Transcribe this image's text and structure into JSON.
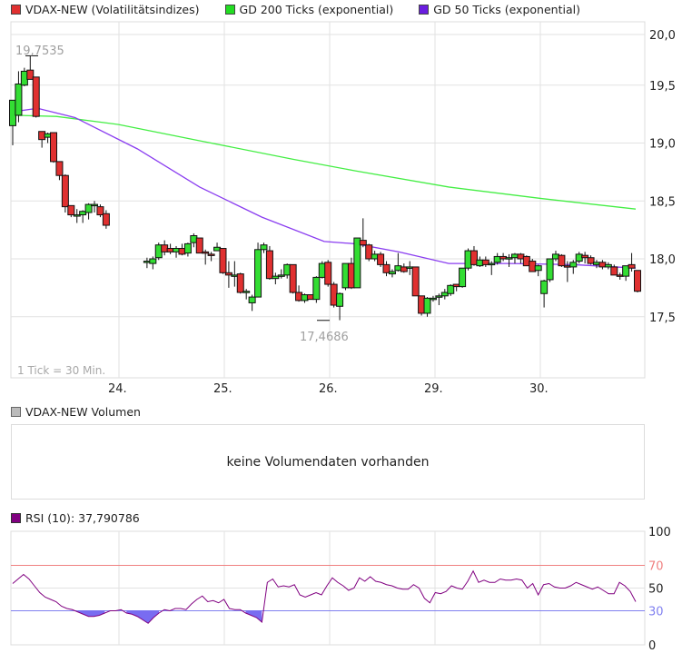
{
  "legend": {
    "items": [
      {
        "label": "VDAX-NEW (Volatilitätsindizes)",
        "color": "#e03030"
      },
      {
        "label": "GD 200 Ticks (exponential)",
        "color": "#22dd22"
      },
      {
        "label": "GD 50 Ticks (exponential)",
        "color": "#6a1de0"
      }
    ]
  },
  "main_chart": {
    "high_label": "19,7535",
    "low_label": "17,4686",
    "tick_note": "1 Tick = 30 Min.",
    "y_ticks": [
      "20,0",
      "19,5",
      "19,0",
      "18,5",
      "18,0",
      "17,5"
    ],
    "x_ticks": [
      "24.",
      "25.",
      "26.",
      "29.",
      "30."
    ]
  },
  "volume_panel": {
    "label": "VDAX-NEW Volumen",
    "swatch_color": "#bbbbbb",
    "message": "keine Volumendaten vorhanden"
  },
  "rsi_panel": {
    "label": "RSI (10): 37,790786",
    "swatch_color": "#800080",
    "y_ticks": [
      "100",
      "70",
      "50",
      "30",
      "0"
    ],
    "overbought": 70,
    "oversold": 30,
    "overbought_color": "#f08080",
    "oversold_color": "#8080f0"
  },
  "colors": {
    "up": "#33dd33",
    "down": "#e03030",
    "ema200": "#44ee44",
    "ema50": "#8a3df0",
    "grid": "#e0e0e0",
    "rsi_line": "#800080",
    "rsi_fill": "#6a5cf0"
  },
  "chart_data": [
    {
      "type": "candlestick",
      "title": "VDAX-NEW (Volatilitätsindizes)",
      "xlabel": "",
      "ylabel": "",
      "ylim": [
        17.0,
        20.1
      ],
      "x_categories": [
        "24.",
        "25.",
        "26.",
        "29.",
        "30."
      ],
      "interval": "30 Min.",
      "annotations": [
        {
          "label": "19,7535",
          "type": "high"
        },
        {
          "label": "17,4686",
          "type": "low"
        }
      ],
      "candles": [
        {
          "o": 19.15,
          "h": 19.35,
          "l": 18.98,
          "c": 19.37
        },
        {
          "o": 19.24,
          "h": 19.62,
          "l": 19.18,
          "c": 19.51
        },
        {
          "o": 19.5,
          "h": 19.65,
          "l": 19.49,
          "c": 19.62
        },
        {
          "o": 19.63,
          "h": 19.75,
          "l": 19.55,
          "c": 19.55
        },
        {
          "o": 19.57,
          "h": 19.57,
          "l": 19.22,
          "c": 19.23
        },
        {
          "o": 19.1,
          "h": 19.1,
          "l": 18.96,
          "c": 19.03
        },
        {
          "o": 19.05,
          "h": 19.09,
          "l": 19.0,
          "c": 19.08
        },
        {
          "o": 19.09,
          "h": 19.09,
          "l": 18.83,
          "c": 18.84
        },
        {
          "o": 18.84,
          "h": 18.84,
          "l": 18.68,
          "c": 18.72
        },
        {
          "o": 18.72,
          "h": 18.73,
          "l": 18.4,
          "c": 18.45
        },
        {
          "o": 18.46,
          "h": 18.46,
          "l": 18.36,
          "c": 18.38
        },
        {
          "o": 18.38,
          "h": 18.43,
          "l": 18.31,
          "c": 18.38
        },
        {
          "o": 18.38,
          "h": 18.42,
          "l": 18.31,
          "c": 18.41
        },
        {
          "o": 18.4,
          "h": 18.48,
          "l": 18.34,
          "c": 18.47
        },
        {
          "o": 18.47,
          "h": 18.5,
          "l": 18.4,
          "c": 18.47
        },
        {
          "o": 18.45,
          "h": 18.47,
          "l": 18.36,
          "c": 18.38
        },
        {
          "o": 18.39,
          "h": 18.42,
          "l": 18.26,
          "c": 18.29
        },
        {
          "o": 17.98,
          "h": 18.01,
          "l": 17.92,
          "c": 17.98
        },
        {
          "o": 17.96,
          "h": 18.02,
          "l": 17.91,
          "c": 18.0
        },
        {
          "o": 18.01,
          "h": 18.14,
          "l": 17.99,
          "c": 18.12
        },
        {
          "o": 18.12,
          "h": 18.16,
          "l": 18.03,
          "c": 18.06
        },
        {
          "o": 18.09,
          "h": 18.13,
          "l": 18.04,
          "c": 18.06
        },
        {
          "o": 18.06,
          "h": 18.11,
          "l": 18.01,
          "c": 18.09
        },
        {
          "o": 18.09,
          "h": 18.13,
          "l": 18.03,
          "c": 18.04
        },
        {
          "o": 18.05,
          "h": 18.14,
          "l": 18.02,
          "c": 18.13
        },
        {
          "o": 18.14,
          "h": 18.22,
          "l": 18.1,
          "c": 18.2
        },
        {
          "o": 18.18,
          "h": 18.18,
          "l": 18.05,
          "c": 18.05
        },
        {
          "o": 18.06,
          "h": 18.08,
          "l": 17.95,
          "c": 18.05
        },
        {
          "o": 18.04,
          "h": 18.06,
          "l": 17.98,
          "c": 18.03
        },
        {
          "o": 18.07,
          "h": 18.14,
          "l": 18.07,
          "c": 18.1
        },
        {
          "o": 18.09,
          "h": 18.09,
          "l": 17.87,
          "c": 17.88
        },
        {
          "o": 17.88,
          "h": 17.98,
          "l": 17.75,
          "c": 17.86
        },
        {
          "o": 17.85,
          "h": 17.98,
          "l": 17.76,
          "c": 17.86
        },
        {
          "o": 17.87,
          "h": 17.88,
          "l": 17.7,
          "c": 17.71
        },
        {
          "o": 17.71,
          "h": 17.74,
          "l": 17.65,
          "c": 17.72
        },
        {
          "o": 17.62,
          "h": 17.69,
          "l": 17.55,
          "c": 17.67
        },
        {
          "o": 17.67,
          "h": 18.14,
          "l": 17.67,
          "c": 18.08
        },
        {
          "o": 18.08,
          "h": 18.14,
          "l": 18.05,
          "c": 18.12
        },
        {
          "o": 18.07,
          "h": 18.11,
          "l": 17.82,
          "c": 17.83
        },
        {
          "o": 17.83,
          "h": 17.88,
          "l": 17.78,
          "c": 17.85
        },
        {
          "o": 17.86,
          "h": 17.91,
          "l": 17.83,
          "c": 17.86
        },
        {
          "o": 17.86,
          "h": 17.96,
          "l": 17.83,
          "c": 17.95
        },
        {
          "o": 17.95,
          "h": 17.95,
          "l": 17.7,
          "c": 17.71
        },
        {
          "o": 17.71,
          "h": 17.77,
          "l": 17.63,
          "c": 17.64
        },
        {
          "o": 17.64,
          "h": 17.7,
          "l": 17.62,
          "c": 17.69
        },
        {
          "o": 17.69,
          "h": 17.69,
          "l": 17.65,
          "c": 17.65
        },
        {
          "o": 17.65,
          "h": 17.85,
          "l": 17.62,
          "c": 17.84
        },
        {
          "o": 17.84,
          "h": 17.98,
          "l": 17.83,
          "c": 17.96
        },
        {
          "o": 17.97,
          "h": 17.99,
          "l": 17.76,
          "c": 17.78
        },
        {
          "o": 17.78,
          "h": 17.8,
          "l": 17.58,
          "c": 17.6
        },
        {
          "o": 17.59,
          "h": 17.71,
          "l": 17.47,
          "c": 17.7
        },
        {
          "o": 17.75,
          "h": 17.96,
          "l": 17.73,
          "c": 17.96
        },
        {
          "o": 17.96,
          "h": 18.01,
          "l": 17.74,
          "c": 17.75
        },
        {
          "o": 17.75,
          "h": 18.18,
          "l": 17.75,
          "c": 18.18
        },
        {
          "o": 18.16,
          "h": 18.35,
          "l": 18.1,
          "c": 18.12
        },
        {
          "o": 18.12,
          "h": 18.13,
          "l": 17.98,
          "c": 18.0
        },
        {
          "o": 18.0,
          "h": 18.07,
          "l": 17.98,
          "c": 18.04
        },
        {
          "o": 18.04,
          "h": 18.06,
          "l": 17.93,
          "c": 17.95
        },
        {
          "o": 17.95,
          "h": 17.98,
          "l": 17.85,
          "c": 17.88
        },
        {
          "o": 17.87,
          "h": 17.91,
          "l": 17.84,
          "c": 17.89
        },
        {
          "o": 17.9,
          "h": 18.05,
          "l": 17.89,
          "c": 17.94
        },
        {
          "o": 17.93,
          "h": 17.96,
          "l": 17.88,
          "c": 17.89
        },
        {
          "o": 17.93,
          "h": 17.98,
          "l": 17.86,
          "c": 17.93
        },
        {
          "o": 17.93,
          "h": 17.93,
          "l": 17.68,
          "c": 17.68
        },
        {
          "o": 17.68,
          "h": 17.68,
          "l": 17.51,
          "c": 17.53
        },
        {
          "o": 17.53,
          "h": 17.67,
          "l": 17.5,
          "c": 17.66
        },
        {
          "o": 17.65,
          "h": 17.68,
          "l": 17.63,
          "c": 17.66
        },
        {
          "o": 17.67,
          "h": 17.7,
          "l": 17.6,
          "c": 17.68
        },
        {
          "o": 17.68,
          "h": 17.74,
          "l": 17.65,
          "c": 17.71
        },
        {
          "o": 17.7,
          "h": 17.78,
          "l": 17.68,
          "c": 17.77
        },
        {
          "o": 17.78,
          "h": 17.78,
          "l": 17.72,
          "c": 17.76
        },
        {
          "o": 17.76,
          "h": 17.92,
          "l": 17.75,
          "c": 17.92
        },
        {
          "o": 17.92,
          "h": 18.09,
          "l": 17.9,
          "c": 18.07
        },
        {
          "o": 18.07,
          "h": 18.11,
          "l": 17.94,
          "c": 17.95
        },
        {
          "o": 17.94,
          "h": 18.02,
          "l": 17.93,
          "c": 17.99
        },
        {
          "o": 17.99,
          "h": 18.02,
          "l": 17.93,
          "c": 17.95
        },
        {
          "o": 17.95,
          "h": 17.98,
          "l": 17.86,
          "c": 17.96
        },
        {
          "o": 17.97,
          "h": 18.05,
          "l": 17.95,
          "c": 18.02
        },
        {
          "o": 18.02,
          "h": 18.05,
          "l": 17.98,
          "c": 18.0
        },
        {
          "o": 18.0,
          "h": 18.04,
          "l": 17.93,
          "c": 18.01
        },
        {
          "o": 18.01,
          "h": 18.05,
          "l": 17.96,
          "c": 18.04
        },
        {
          "o": 18.04,
          "h": 18.05,
          "l": 17.96,
          "c": 18.0
        },
        {
          "o": 18.02,
          "h": 18.03,
          "l": 17.96,
          "c": 17.94
        },
        {
          "o": 17.98,
          "h": 18.0,
          "l": 17.89,
          "c": 17.89
        },
        {
          "o": 17.9,
          "h": 17.95,
          "l": 17.85,
          "c": 17.94
        },
        {
          "o": 17.7,
          "h": 17.82,
          "l": 17.58,
          "c": 17.81
        },
        {
          "o": 17.82,
          "h": 18.0,
          "l": 17.8,
          "c": 18.0
        },
        {
          "o": 18.0,
          "h": 18.07,
          "l": 17.98,
          "c": 18.04
        },
        {
          "o": 18.03,
          "h": 18.04,
          "l": 17.93,
          "c": 17.94
        },
        {
          "o": 17.94,
          "h": 17.98,
          "l": 17.8,
          "c": 17.93
        },
        {
          "o": 17.93,
          "h": 17.99,
          "l": 17.87,
          "c": 17.97
        },
        {
          "o": 17.98,
          "h": 18.06,
          "l": 17.96,
          "c": 18.04
        },
        {
          "o": 18.03,
          "h": 18.06,
          "l": 17.96,
          "c": 18.01
        },
        {
          "o": 18.01,
          "h": 18.03,
          "l": 17.95,
          "c": 17.96
        },
        {
          "o": 17.95,
          "h": 17.99,
          "l": 17.92,
          "c": 17.97
        },
        {
          "o": 17.97,
          "h": 17.99,
          "l": 17.91,
          "c": 17.93
        },
        {
          "o": 17.93,
          "h": 17.97,
          "l": 17.91,
          "c": 17.95
        },
        {
          "o": 17.93,
          "h": 17.95,
          "l": 17.86,
          "c": 17.86
        },
        {
          "o": 17.86,
          "h": 17.88,
          "l": 17.82,
          "c": 17.85
        },
        {
          "o": 17.85,
          "h": 17.94,
          "l": 17.81,
          "c": 17.94
        },
        {
          "o": 17.95,
          "h": 18.05,
          "l": 17.89,
          "c": 17.92
        },
        {
          "o": 17.9,
          "h": 17.9,
          "l": 17.71,
          "c": 17.72
        }
      ],
      "series": [
        {
          "name": "GD 200 Ticks (exponential)",
          "points": [
            [
              0,
              19.24
            ],
            [
              0.07,
              19.23
            ],
            [
              0.17,
              19.16
            ],
            [
              0.3,
              19.02
            ],
            [
              0.45,
              18.86
            ],
            [
              0.55,
              18.76
            ],
            [
              0.7,
              18.62
            ],
            [
              0.85,
              18.52
            ],
            [
              1.0,
              18.43
            ]
          ]
        },
        {
          "name": "GD 50 Ticks (exponential)",
          "points": [
            [
              0,
              19.27
            ],
            [
              0.04,
              19.3
            ],
            [
              0.1,
              19.22
            ],
            [
              0.2,
              18.95
            ],
            [
              0.3,
              18.62
            ],
            [
              0.4,
              18.36
            ],
            [
              0.5,
              18.15
            ],
            [
              0.55,
              18.13
            ],
            [
              0.62,
              18.06
            ],
            [
              0.7,
              17.96
            ],
            [
              0.8,
              17.96
            ],
            [
              0.9,
              17.95
            ],
            [
              1.0,
              17.92
            ]
          ]
        }
      ]
    },
    {
      "type": "line",
      "title": "RSI (10): 37,790786",
      "ylim": [
        0,
        100
      ],
      "y_ticks": [
        0,
        30,
        50,
        70,
        100
      ],
      "reference_lines": [
        70,
        30
      ],
      "last_value": 37.790786,
      "values": [
        54,
        58,
        62,
        58,
        52,
        46,
        42,
        40,
        38,
        34,
        32,
        31,
        29,
        27,
        25,
        25,
        26,
        28,
        30,
        30,
        31,
        28,
        27,
        25,
        22,
        19,
        24,
        28,
        31,
        30,
        32,
        32,
        31,
        36,
        40,
        43,
        38,
        39,
        37,
        40,
        32,
        31,
        31,
        28,
        26,
        24,
        20,
        55,
        58,
        51,
        52,
        51,
        53,
        44,
        42,
        44,
        46,
        44,
        52,
        59,
        55,
        52,
        48,
        50,
        59,
        56,
        60,
        56,
        55,
        53,
        52,
        50,
        49,
        49,
        53,
        50,
        41,
        37,
        46,
        45,
        47,
        52,
        50,
        49,
        56,
        65,
        55,
        57,
        55,
        55,
        58,
        57,
        57,
        58,
        57,
        50,
        54,
        44,
        53,
        54,
        51,
        50,
        50,
        52,
        55,
        53,
        51,
        49,
        51,
        48,
        45,
        45,
        55,
        52,
        47,
        38
      ]
    }
  ]
}
